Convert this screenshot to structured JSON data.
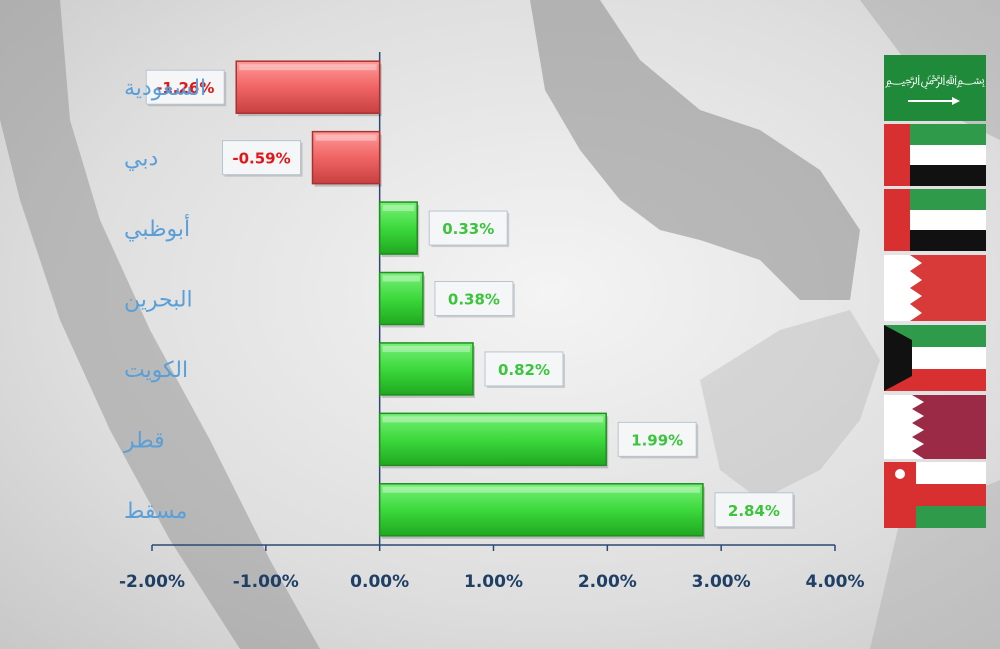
{
  "chart_data": {
    "type": "bar",
    "orientation": "horizontal",
    "categories": [
      "السعودية",
      "دبي",
      "أبوظبي",
      "البحرين",
      "الكويت",
      "قطر",
      "مسقط"
    ],
    "values": [
      -1.26,
      -0.59,
      0.33,
      0.38,
      0.82,
      1.99,
      2.84
    ],
    "data_labels": [
      "-1.26%",
      "-0.59%",
      "0.33%",
      "0.38%",
      "0.82%",
      "1.99%",
      "2.84%"
    ],
    "x_ticks": [
      "-2.00%",
      "-1.00%",
      "0.00%",
      "1.00%",
      "2.00%",
      "3.00%",
      "4.00%"
    ],
    "xlim": [
      -2,
      4
    ],
    "grid": false,
    "colors": {
      "positive": "#3cd93c",
      "positive_dark": "#1f8f1f",
      "negative": "#f06464",
      "negative_dark": "#a83232",
      "positive_text": "#3cc43c",
      "negative_text": "#e01818",
      "category_text": "#5a9fd8",
      "axis": "#2a4a73"
    },
    "flags": [
      "saudi-arabia-flag",
      "uae-flag",
      "uae-flag",
      "bahrain-flag",
      "kuwait-flag",
      "qatar-flag",
      "oman-flag"
    ]
  }
}
